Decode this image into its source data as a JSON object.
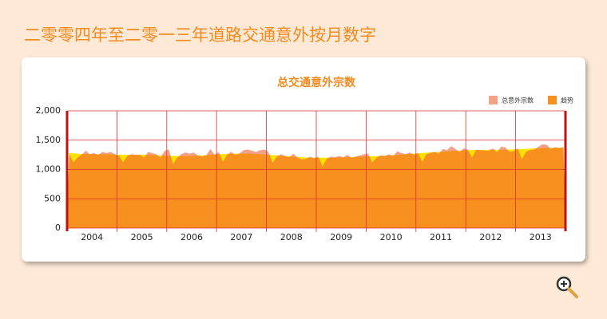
{
  "page": {
    "title": "二零零四年至二零一三年道路交通意外按月数字"
  },
  "chart_data": {
    "type": "area",
    "title": "总交通意外宗数",
    "categories": [
      null,
      null,
      null,
      null,
      null,
      null,
      "2004",
      null,
      null,
      null,
      null,
      null,
      null,
      null,
      null,
      null,
      null,
      null,
      "2005",
      null,
      null,
      null,
      null,
      null,
      null,
      null,
      null,
      null,
      null,
      null,
      "2006",
      null,
      null,
      null,
      null,
      null,
      null,
      null,
      null,
      null,
      null,
      null,
      "2007",
      null,
      null,
      null,
      null,
      null,
      null,
      null,
      null,
      null,
      null,
      null,
      "2008",
      null,
      null,
      null,
      null,
      null,
      null,
      null,
      null,
      null,
      null,
      null,
      "2009",
      null,
      null,
      null,
      null,
      null,
      null,
      null,
      null,
      null,
      null,
      null,
      "2010",
      null,
      null,
      null,
      null,
      null,
      null,
      null,
      null,
      null,
      null,
      null,
      "2011",
      null,
      null,
      null,
      null,
      null,
      null,
      null,
      null,
      null,
      null,
      null,
      "2012",
      null,
      null,
      null,
      null,
      null,
      null,
      null,
      null,
      null,
      null,
      null,
      "2013",
      null,
      null,
      null,
      null,
      null
    ],
    "series": [
      {
        "name": "总意外宗数",
        "color": "#f3a28a",
        "values": [
          1260,
          1120,
          1200,
          1250,
          1320,
          1260,
          1280,
          1250,
          1300,
          1280,
          1300,
          1260,
          1230,
          1120,
          1230,
          1260,
          1250,
          1250,
          1200,
          1300,
          1280,
          1260,
          1200,
          1320,
          1340,
          1090,
          1200,
          1260,
          1290,
          1270,
          1290,
          1240,
          1220,
          1240,
          1350,
          1250,
          1300,
          1130,
          1250,
          1300,
          1250,
          1270,
          1330,
          1340,
          1320,
          1300,
          1330,
          1340,
          1300,
          1110,
          1220,
          1260,
          1230,
          1210,
          1270,
          1200,
          1170,
          1180,
          1220,
          1190,
          1220,
          1050,
          1180,
          1220,
          1210,
          1230,
          1210,
          1250,
          1200,
          1220,
          1240,
          1260,
          1270,
          1120,
          1200,
          1240,
          1230,
          1260,
          1230,
          1310,
          1280,
          1260,
          1290,
          1250,
          1280,
          1130,
          1260,
          1280,
          1300,
          1270,
          1350,
          1330,
          1400,
          1350,
          1300,
          1360,
          1340,
          1200,
          1340,
          1330,
          1320,
          1320,
          1360,
          1290,
          1390,
          1380,
          1300,
          1310,
          1360,
          1170,
          1300,
          1330,
          1340,
          1390,
          1430,
          1420,
          1350,
          1380,
          1360,
          1380
        ]
      },
      {
        "name": "趋势",
        "color": "#f7901e",
        "values": [
          1280,
          1275,
          1270,
          1265,
          1262,
          1260,
          1260,
          1260,
          1260,
          1260,
          1258,
          1255,
          1252,
          1250,
          1250,
          1250,
          1250,
          1250,
          1250,
          1250,
          1248,
          1245,
          1240,
          1238,
          1235,
          1232,
          1230,
          1230,
          1230,
          1232,
          1235,
          1238,
          1240,
          1245,
          1250,
          1255,
          1260,
          1262,
          1265,
          1268,
          1270,
          1272,
          1272,
          1270,
          1268,
          1265,
          1260,
          1255,
          1250,
          1245,
          1240,
          1235,
          1230,
          1225,
          1220,
          1215,
          1210,
          1205,
          1200,
          1200,
          1200,
          1200,
          1200,
          1200,
          1200,
          1205,
          1205,
          1210,
          1210,
          1215,
          1220,
          1220,
          1225,
          1225,
          1230,
          1230,
          1235,
          1240,
          1245,
          1250,
          1255,
          1260,
          1265,
          1270,
          1275,
          1280,
          1285,
          1290,
          1295,
          1300,
          1305,
          1310,
          1315,
          1320,
          1322,
          1325,
          1328,
          1330,
          1330,
          1332,
          1333,
          1335,
          1335,
          1335,
          1335,
          1337,
          1340,
          1342,
          1345,
          1348,
          1350,
          1355,
          1358,
          1360,
          1362,
          1365,
          1368,
          1370,
          1372,
          1375
        ]
      }
    ],
    "ylim": [
      0,
      2000
    ],
    "yticks": [
      0,
      500,
      {
        "value": 1000,
        "label": "1,000"
      },
      {
        "value": 1500,
        "label": "1,500"
      },
      {
        "value": 2000,
        "label": "2,000"
      }
    ],
    "grid": true
  }
}
